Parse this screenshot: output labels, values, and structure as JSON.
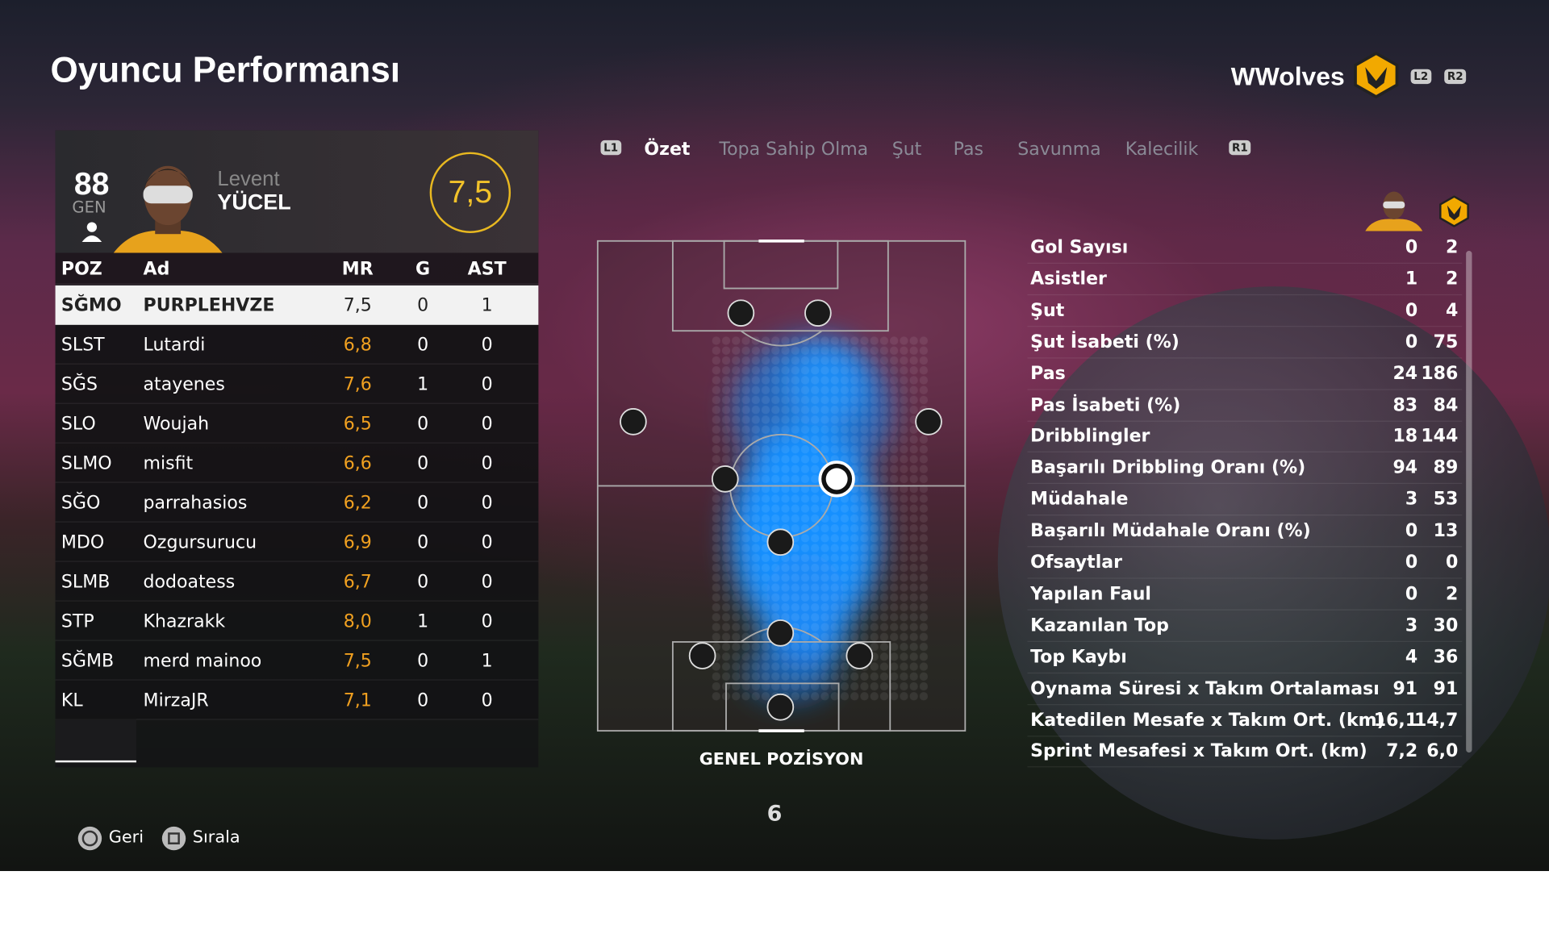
{
  "header": {
    "title": "Oyuncu Performansı",
    "team": "WWolves",
    "buttons": [
      "L2",
      "R2"
    ]
  },
  "player": {
    "overall": "88",
    "overall_label": "GEN",
    "first_name": "Levent",
    "last_name": "YÜCEL",
    "match_rating": "7,5"
  },
  "table": {
    "columns": [
      "POZ",
      "Ad",
      "MR",
      "G",
      "AST"
    ],
    "rows": [
      [
        "SĞMO",
        "PURPLEHVZE",
        "7,5",
        "0",
        "1"
      ],
      [
        "SLST",
        "Lutardi",
        "6,8",
        "0",
        "0"
      ],
      [
        "SĞS",
        "atayenes",
        "7,6",
        "1",
        "0"
      ],
      [
        "SLO",
        "Woujah",
        "6,5",
        "0",
        "0"
      ],
      [
        "SLMO",
        "misfit",
        "6,6",
        "0",
        "0"
      ],
      [
        "SĞO",
        "parrahasios",
        "6,2",
        "0",
        "0"
      ],
      [
        "MDO",
        "Ozgursurucu",
        "6,9",
        "0",
        "0"
      ],
      [
        "SLMB",
        "dodoatess",
        "6,7",
        "0",
        "0"
      ],
      [
        "STP",
        "Khazrakk",
        "8,0",
        "1",
        "0"
      ],
      [
        "SĞMB",
        "merd mainoo",
        "7,5",
        "0",
        "1"
      ],
      [
        "KL",
        "MirzaJR",
        "7,1",
        "0",
        "0"
      ]
    ]
  },
  "tabs": {
    "left_button": "L1",
    "items": [
      "Özet",
      "Topa Sahip Olma",
      "Şut",
      "Pas",
      "Savunma",
      "Kalecilik"
    ],
    "right_button": "R1"
  },
  "pitch": {
    "caption": "GENEL POZİSYON",
    "page": "6"
  },
  "stats": {
    "rows": [
      [
        "Gol Sayısı",
        "0",
        "2"
      ],
      [
        "Asistler",
        "1",
        "2"
      ],
      [
        "Şut",
        "0",
        "4"
      ],
      [
        "Şut İsabeti (%)",
        "0",
        "75"
      ],
      [
        "Pas",
        "24",
        "186"
      ],
      [
        "Pas İsabeti (%)",
        "83",
        "84"
      ],
      [
        "Dribblingler",
        "18",
        "144"
      ],
      [
        "Başarılı Dribbling Oranı (%)",
        "94",
        "89"
      ],
      [
        "Müdahale",
        "3",
        "53"
      ],
      [
        "Başarılı Müdahale Oranı (%)",
        "0",
        "13"
      ],
      [
        "Ofsaytlar",
        "0",
        "0"
      ],
      [
        "Yapılan Faul",
        "0",
        "2"
      ],
      [
        "Kazanılan Top",
        "3",
        "30"
      ],
      [
        "Top Kaybı",
        "4",
        "36"
      ],
      [
        "Oynama Süresi x Takım Ortalaması",
        "91",
        "91"
      ],
      [
        "Katedilen Mesafe x Takım Ort. (km)",
        "16,1",
        "14,7"
      ],
      [
        "Sprint Mesafesi x Takım Ort. (km)",
        "7,2",
        "6,0"
      ]
    ]
  },
  "footer": {
    "buttons": [
      "Geri",
      "Sırala"
    ]
  }
}
